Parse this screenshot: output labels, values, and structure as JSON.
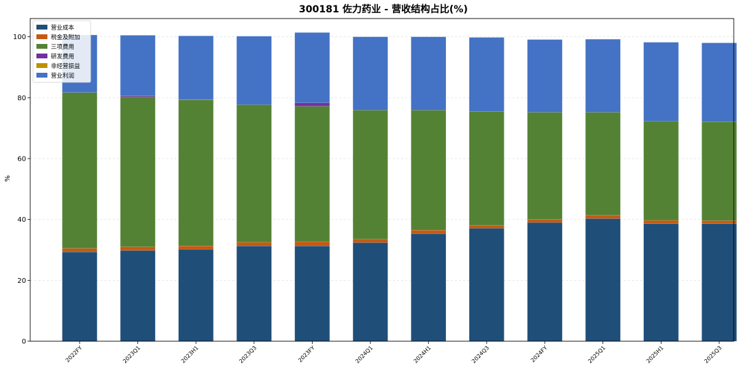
{
  "chart_data": {
    "type": "bar",
    "stacked": true,
    "title": "300181 佐力药业 - 营收结构占比(%)",
    "xlabel": "",
    "ylabel": "%",
    "ylim": [
      0,
      106
    ],
    "yticks": [
      0,
      20,
      40,
      60,
      80,
      100
    ],
    "grid": true,
    "legend_position": "top-left",
    "categories": [
      "2022FY",
      "2023Q1",
      "2023H1",
      "2023Q3",
      "2023FY",
      "2024Q1",
      "2024H1",
      "2024Q3",
      "2024FY",
      "2025Q1",
      "2025H1",
      "2025Q3"
    ],
    "series": [
      {
        "name": "营业成本",
        "color": "#1f4e79",
        "values": [
          29.3,
          29.8,
          30.2,
          31.3,
          31.3,
          32.4,
          35.3,
          37.1,
          39.0,
          40.3,
          38.6,
          38.6
        ]
      },
      {
        "name": "税金及附加",
        "color": "#c55a11",
        "values": [
          1.2,
          1.2,
          1.1,
          1.2,
          1.4,
          1.2,
          1.2,
          1.0,
          1.0,
          1.1,
          1.1,
          1.0
        ]
      },
      {
        "name": "三项费用",
        "color": "#548235",
        "values": [
          51.2,
          49.3,
          48.0,
          45.2,
          44.5,
          42.3,
          39.4,
          37.3,
          35.2,
          33.8,
          32.6,
          32.5
        ]
      },
      {
        "name": "研发费用",
        "color": "#7030a0",
        "values": [
          0,
          0.3,
          0.1,
          0,
          1.1,
          0,
          0,
          0,
          0,
          0,
          0,
          0
        ]
      },
      {
        "name": "非经营损益",
        "color": "#bf9000",
        "values": [
          0,
          0,
          0,
          0,
          0,
          0,
          0,
          0,
          0,
          0,
          0,
          0
        ]
      },
      {
        "name": "营业利润",
        "color": "#4472c4",
        "values": [
          18.9,
          19.9,
          20.9,
          22.5,
          23.1,
          24.1,
          24.1,
          24.4,
          23.9,
          24.0,
          25.9,
          25.9
        ]
      }
    ]
  }
}
